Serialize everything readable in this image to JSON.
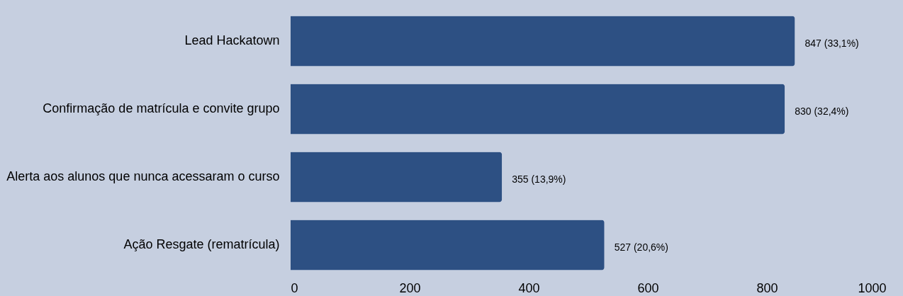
{
  "chart_data": {
    "type": "bar",
    "orientation": "horizontal",
    "categories": [
      "Lead Hackatown",
      "Confirmação de matrícula e convite grupo",
      "Alerta aos alunos que nunca acessaram o curso",
      "Ação Resgate (rematrícula)"
    ],
    "values": [
      847,
      830,
      355,
      527
    ],
    "value_labels": [
      "847 (33,1%)",
      "830 (32,4%)",
      "355 (13,9%)",
      "527 (20,6%)"
    ],
    "color": "#2d5083",
    "xlim": [
      0,
      1000
    ],
    "xticks": [
      0,
      200,
      400,
      600,
      800,
      1000
    ],
    "grid": false
  }
}
